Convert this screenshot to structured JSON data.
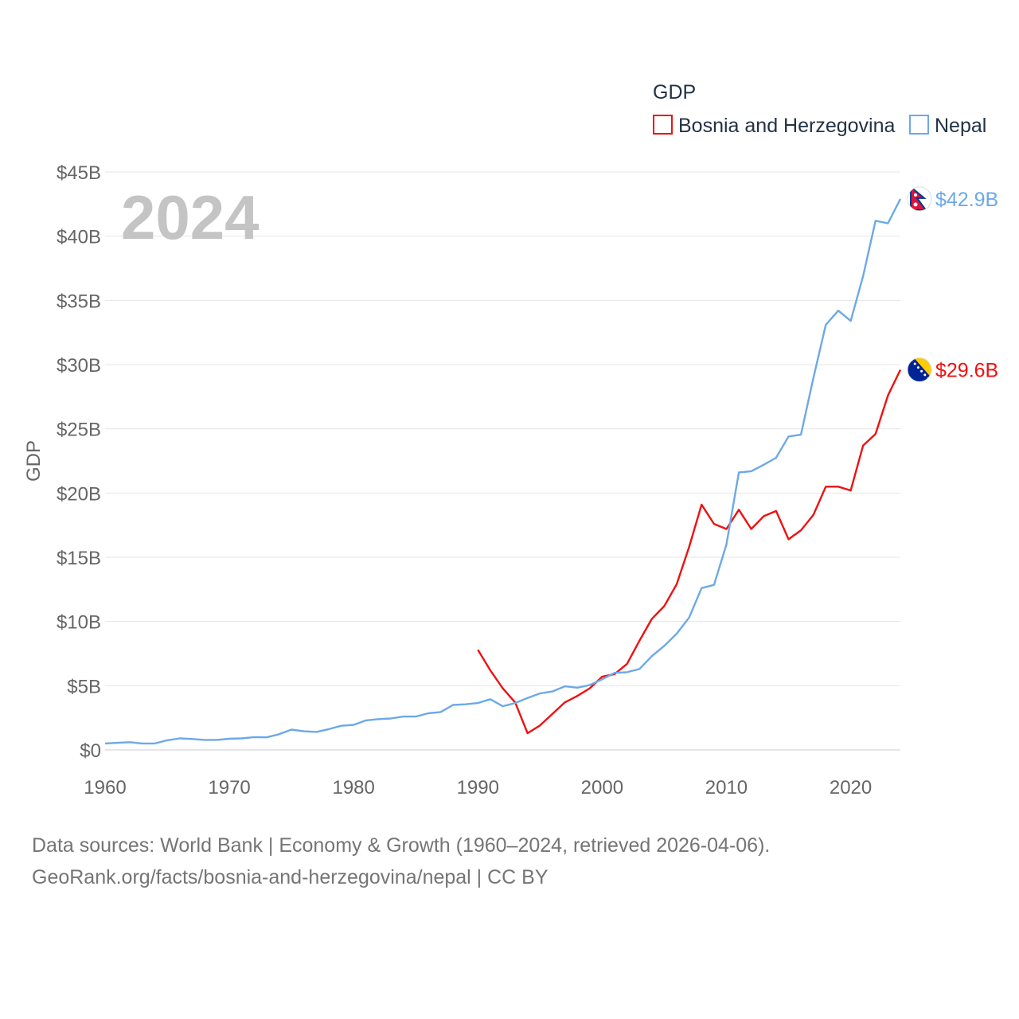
{
  "chart_data": {
    "type": "line",
    "ylabel": "GDP",
    "xlabel": "",
    "xlim": [
      1960,
      2024
    ],
    "ylim": [
      0,
      45
    ],
    "y_unit": "billion USD",
    "y_ticks": [
      {
        "value": 0,
        "label": "$0"
      },
      {
        "value": 5,
        "label": "$5B"
      },
      {
        "value": 10,
        "label": "$10B"
      },
      {
        "value": 15,
        "label": "$15B"
      },
      {
        "value": 20,
        "label": "$20B"
      },
      {
        "value": 25,
        "label": "$25B"
      },
      {
        "value": 30,
        "label": "$30B"
      },
      {
        "value": 35,
        "label": "$35B"
      },
      {
        "value": 40,
        "label": "$40B"
      },
      {
        "value": 45,
        "label": "$45B"
      }
    ],
    "x_ticks": [
      {
        "value": 1960,
        "label": "1960"
      },
      {
        "value": 1970,
        "label": "1970"
      },
      {
        "value": 1980,
        "label": "1980"
      },
      {
        "value": 1990,
        "label": "1990"
      },
      {
        "value": 2000,
        "label": "2000"
      },
      {
        "value": 2010,
        "label": "2010"
      },
      {
        "value": 2020,
        "label": "2020"
      }
    ],
    "legend": {
      "title": "GDP",
      "position": "top-right"
    },
    "year_watermark": "2024",
    "series": [
      {
        "name": "Bosnia and Herzegovina",
        "color": "#ee1111",
        "flag": "bosnia-flag",
        "end_label": "$29.6B",
        "x": [
          1990,
          1991,
          1992,
          1993,
          1994,
          1995,
          1996,
          1997,
          1998,
          1999,
          2000,
          2001,
          2002,
          2003,
          2004,
          2005,
          2006,
          2007,
          2008,
          2009,
          2010,
          2011,
          2012,
          2013,
          2014,
          2015,
          2016,
          2017,
          2018,
          2019,
          2020,
          2021,
          2022,
          2023,
          2024
        ],
        "values": [
          7.8,
          6.2,
          4.8,
          3.7,
          1.3,
          1.9,
          2.8,
          3.7,
          4.2,
          4.8,
          5.7,
          5.9,
          6.7,
          8.5,
          10.2,
          11.2,
          12.9,
          15.8,
          19.1,
          17.6,
          17.2,
          18.7,
          17.2,
          18.2,
          18.6,
          16.4,
          17.1,
          18.3,
          20.5,
          20.5,
          20.2,
          23.7,
          24.6,
          27.6,
          29.6
        ]
      },
      {
        "name": "Nepal",
        "color": "#6ca9e8",
        "flag": "nepal-flag",
        "end_label": "$42.9B",
        "x": [
          1960,
          1961,
          1962,
          1963,
          1964,
          1965,
          1966,
          1967,
          1968,
          1969,
          1970,
          1971,
          1972,
          1973,
          1974,
          1975,
          1976,
          1977,
          1978,
          1979,
          1980,
          1981,
          1982,
          1983,
          1984,
          1985,
          1986,
          1987,
          1988,
          1989,
          1990,
          1991,
          1992,
          1993,
          1994,
          1995,
          1996,
          1997,
          1998,
          1999,
          2000,
          2001,
          2002,
          2003,
          2004,
          2005,
          2006,
          2007,
          2008,
          2009,
          2010,
          2011,
          2012,
          2013,
          2014,
          2015,
          2016,
          2017,
          2018,
          2019,
          2020,
          2021,
          2022,
          2023,
          2024
        ],
        "values": [
          0.5,
          0.55,
          0.6,
          0.5,
          0.5,
          0.75,
          0.9,
          0.85,
          0.78,
          0.78,
          0.87,
          0.9,
          1.0,
          0.98,
          1.22,
          1.58,
          1.45,
          1.4,
          1.62,
          1.88,
          1.95,
          2.3,
          2.4,
          2.45,
          2.6,
          2.6,
          2.85,
          2.95,
          3.5,
          3.55,
          3.65,
          3.95,
          3.4,
          3.65,
          4.05,
          4.4,
          4.55,
          4.95,
          4.85,
          5.05,
          5.5,
          6.0,
          6.05,
          6.3,
          7.3,
          8.1,
          9.05,
          10.3,
          12.6,
          12.85,
          16.0,
          21.6,
          21.7,
          22.2,
          22.75,
          24.4,
          24.55,
          28.95,
          33.1,
          34.2,
          33.4,
          36.9,
          41.2,
          41.0,
          42.9
        ]
      }
    ]
  },
  "footer": {
    "line1": "Data sources: World Bank | Economy & Growth (1960–2024, retrieved 2026-04-06).",
    "line2": "GeoRank.org/facts/bosnia-and-herzegovina/nepal | CC BY"
  }
}
